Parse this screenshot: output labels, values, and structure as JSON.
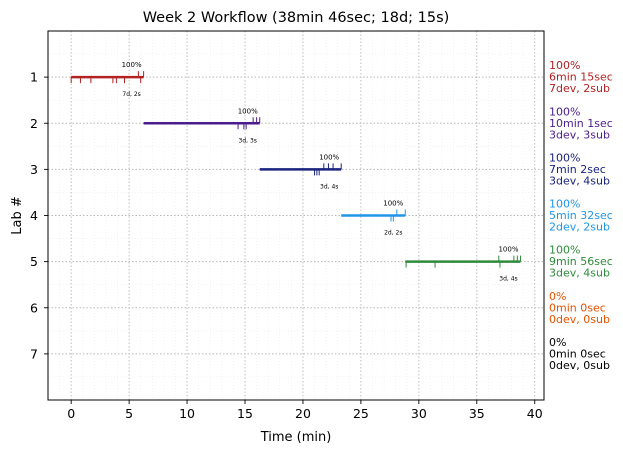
{
  "chart_data": {
    "type": "gantt",
    "title": "Week 2 Workflow (38min 46sec; 18d; 15s)",
    "xlabel": "Time (min)",
    "ylabel": "Lab #",
    "xlim": [
      -2,
      40.8
    ],
    "ylim": [
      8,
      0
    ],
    "x_ticks": [
      0,
      5,
      10,
      15,
      20,
      25,
      30,
      35,
      40
    ],
    "y_ticks": [
      1,
      2,
      3,
      4,
      5,
      6,
      7
    ],
    "grid": true,
    "labs": [
      {
        "lab": 1,
        "color": "#b22222",
        "start": 0.0,
        "end": 6.25,
        "percent": "100%",
        "counts": "7d, 2s",
        "dev_ticks": [
          0.0,
          0.8,
          1.7,
          3.6,
          3.9,
          4.6,
          6.0
        ],
        "sub_ticks": [
          5.8,
          6.25
        ],
        "summary": [
          "100%",
          "6min 15sec",
          "7dev, 2sub"
        ]
      },
      {
        "lab": 2,
        "color": "#4b1c8c",
        "start": 6.25,
        "end": 16.27,
        "percent": "100%",
        "counts": "3d, 3s",
        "dev_ticks": [
          14.4,
          14.9,
          15.1
        ],
        "sub_ticks": [
          15.7,
          16.0,
          16.27
        ],
        "summary": [
          "100%",
          "10min 1sec",
          "3dev, 3sub"
        ]
      },
      {
        "lab": 3,
        "color": "#1a237e",
        "start": 16.27,
        "end": 23.3,
        "percent": "100%",
        "counts": "3d, 4s",
        "dev_ticks": [
          21.0,
          21.2,
          21.4
        ],
        "sub_ticks": [
          21.8,
          22.2,
          22.6,
          23.3
        ],
        "summary": [
          "100%",
          "7min 2sec",
          "3dev, 4sub"
        ]
      },
      {
        "lab": 4,
        "color": "#2196e8",
        "start": 23.3,
        "end": 28.83,
        "percent": "100%",
        "counts": "2d, 2s",
        "dev_ticks": [
          27.6,
          27.8
        ],
        "sub_ticks": [
          28.1,
          28.83
        ],
        "summary": [
          "100%",
          "5min 32sec",
          "2dev, 2sub"
        ]
      },
      {
        "lab": 5,
        "color": "#2e8b3a",
        "start": 28.83,
        "end": 38.77,
        "percent": "100%",
        "counts": "3d, 4s",
        "dev_ticks": [
          28.9,
          31.4,
          37.0
        ],
        "sub_ticks": [
          36.9,
          38.2,
          38.5,
          38.77
        ],
        "summary": [
          "100%",
          "9min 56sec",
          "3dev, 4sub"
        ]
      },
      {
        "lab": 6,
        "color": "#e65100",
        "summary": [
          "0%",
          "0min 0sec",
          "0dev, 0sub"
        ]
      },
      {
        "lab": 7,
        "color": "#000000",
        "summary": [
          "0%",
          "0min 0sec",
          "0dev, 0sub"
        ]
      }
    ]
  }
}
